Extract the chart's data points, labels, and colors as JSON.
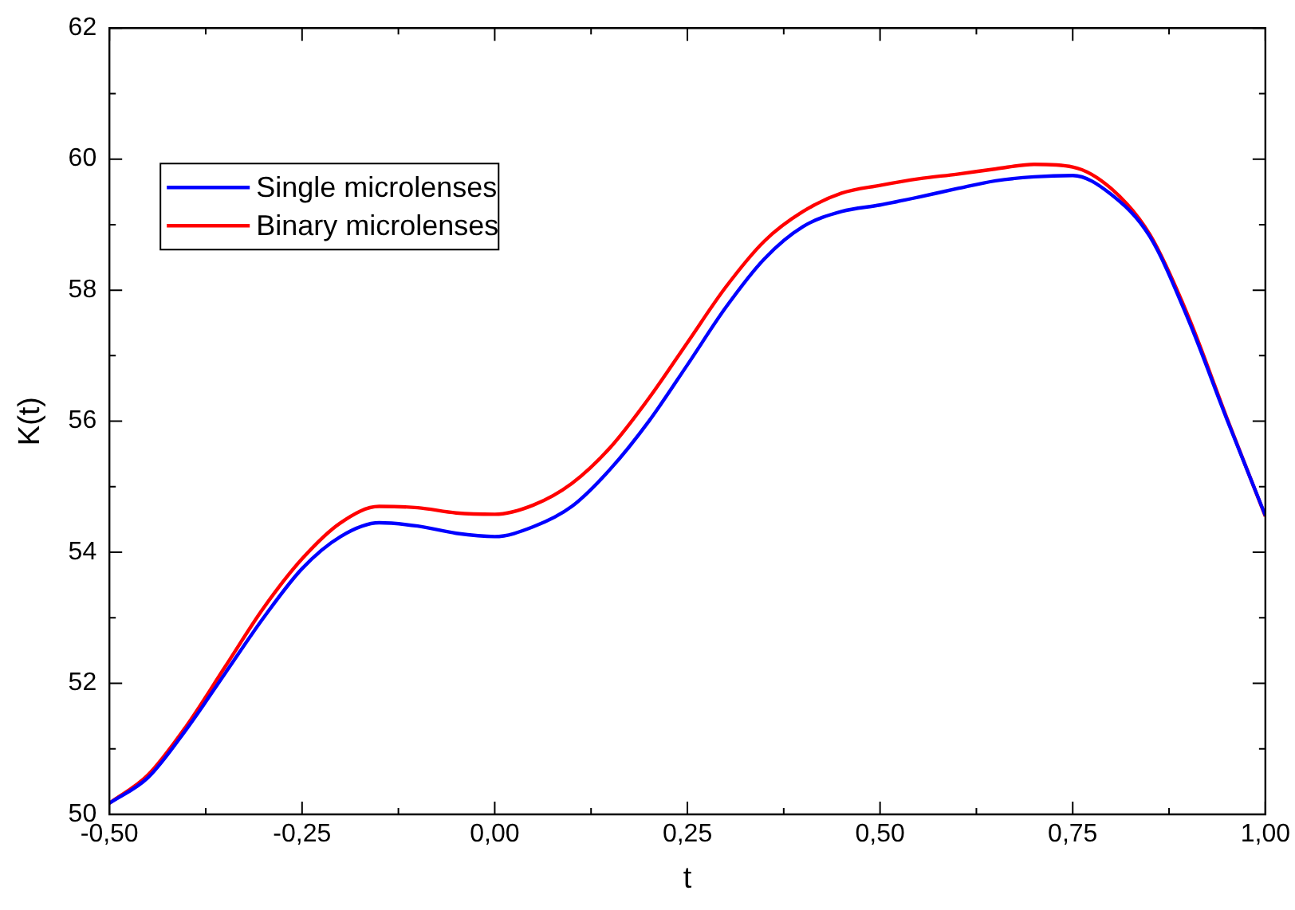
{
  "chart_data": {
    "type": "line",
    "xlabel": "t",
    "ylabel": "K(t)",
    "x": [
      -0.5,
      -0.45,
      -0.4,
      -0.35,
      -0.3,
      -0.25,
      -0.2,
      -0.15,
      -0.1,
      -0.05,
      0,
      0.05,
      0.1,
      0.15,
      0.2,
      0.25,
      0.3,
      0.35,
      0.4,
      0.45,
      0.5,
      0.55,
      0.6,
      0.65,
      0.7,
      0.75,
      0.8,
      0.85,
      0.9,
      0.95,
      1.0
    ],
    "series": [
      {
        "name": "Single microlenses",
        "color": "#0000ff",
        "values": [
          50.17,
          50.56,
          51.3,
          52.15,
          53.0,
          53.75,
          54.24,
          54.45,
          54.4,
          54.29,
          54.24,
          54.39,
          54.7,
          55.27,
          56.0,
          56.86,
          57.74,
          58.48,
          58.97,
          59.2,
          59.3,
          59.42,
          59.55,
          59.67,
          59.73,
          59.75,
          59.46,
          58.82,
          57.55,
          56.03,
          54.56
        ]
      },
      {
        "name": "Binary microlenses",
        "color": "#ff0000",
        "values": [
          50.17,
          50.6,
          51.35,
          52.25,
          53.15,
          53.9,
          54.45,
          54.7,
          54.68,
          54.6,
          54.58,
          54.72,
          55.05,
          55.6,
          56.35,
          57.2,
          58.05,
          58.75,
          59.2,
          59.48,
          59.6,
          59.7,
          59.77,
          59.85,
          59.92,
          59.88,
          59.55,
          58.85,
          57.6,
          56.05,
          54.55
        ]
      }
    ],
    "xlim": [
      -0.5,
      1.0
    ],
    "xticks": [
      {
        "value": -0.5,
        "label": "-0,50"
      },
      {
        "value": -0.25,
        "label": "-0,25"
      },
      {
        "value": 0,
        "label": "0,00"
      },
      {
        "value": 0.25,
        "label": "0,25"
      },
      {
        "value": 0.5,
        "label": "0,50"
      },
      {
        "value": 0.75,
        "label": "0,75"
      },
      {
        "value": 1.0,
        "label": "1,00"
      }
    ],
    "ylim": [
      50,
      62
    ],
    "yticks": [
      50,
      52,
      54,
      56,
      58,
      60,
      62
    ],
    "grid": false,
    "legend": "top left",
    "marker": "none",
    "line_style": "solid"
  }
}
